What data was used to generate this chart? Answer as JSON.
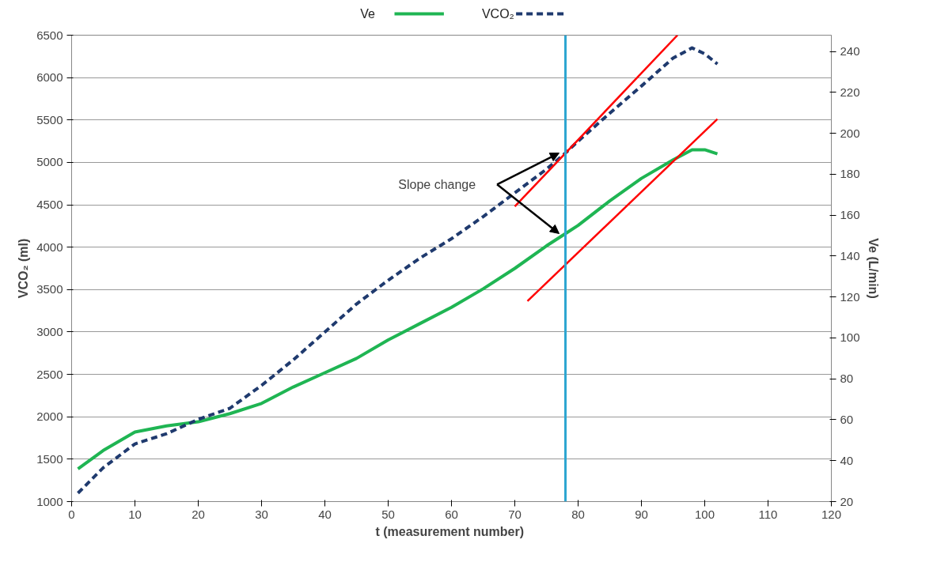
{
  "chart_data": {
    "type": "line",
    "xlabel": "t (measurement  number)",
    "ylabel": "VCO₂ (ml)",
    "y2label": "Ve (L/min)",
    "xlim": [
      0,
      120
    ],
    "xticks": [
      0,
      10,
      20,
      30,
      40,
      50,
      60,
      70,
      80,
      90,
      100,
      110,
      120
    ],
    "ylim": [
      1000,
      6500
    ],
    "yticks": [
      1000,
      1500,
      2000,
      2500,
      3000,
      3500,
      4000,
      4500,
      5000,
      5500,
      6000,
      6500
    ],
    "y2lim": [
      20,
      248
    ],
    "y2ticks": [
      20,
      40,
      60,
      80,
      100,
      120,
      140,
      160,
      180,
      200,
      220,
      240
    ],
    "grid": "y",
    "legend": "top",
    "marker": "none",
    "series": [
      {
        "name": "Ve",
        "color": "#1fb553",
        "axis": "y2",
        "line_style": "solid",
        "x": [
          1,
          5,
          10,
          15,
          20,
          25,
          30,
          35,
          40,
          45,
          50,
          55,
          60,
          65,
          70,
          75,
          78,
          80,
          85,
          90,
          95,
          98,
          100,
          102
        ],
        "values": [
          36,
          45,
          54,
          57,
          59,
          63,
          68,
          76,
          83,
          90,
          99,
          107,
          115,
          124,
          134,
          145,
          151,
          155,
          167,
          178,
          187,
          192,
          192,
          190
        ]
      },
      {
        "name": "VCO₂",
        "color": "#1f3a6e",
        "line_style": "dashed",
        "x": [
          1,
          5,
          10,
          15,
          20,
          25,
          30,
          35,
          40,
          45,
          50,
          55,
          60,
          65,
          70,
          75,
          78,
          80,
          85,
          90,
          95,
          98,
          100,
          102
        ],
        "values": [
          1100,
          1400,
          1680,
          1800,
          1970,
          2100,
          2370,
          2670,
          3000,
          3330,
          3610,
          3870,
          4100,
          4360,
          4640,
          4920,
          5110,
          5250,
          5580,
          5900,
          6230,
          6350,
          6280,
          6160
        ]
      },
      {
        "color": "#ff0000",
        "line_style": "solid",
        "x": [
          70,
          95.7
        ],
        "values": [
          4480,
          6500
        ]
      },
      {
        "color": "#ff0000",
        "axis": "y2",
        "line_style": "solid",
        "x": [
          72,
          102
        ],
        "values": [
          118,
          207
        ]
      }
    ],
    "ref_lines": [
      {
        "axis": "x",
        "value": 78,
        "color": "#2ea6d1",
        "line_style": "solid"
      }
    ],
    "annotations": [
      "Slope change"
    ]
  }
}
